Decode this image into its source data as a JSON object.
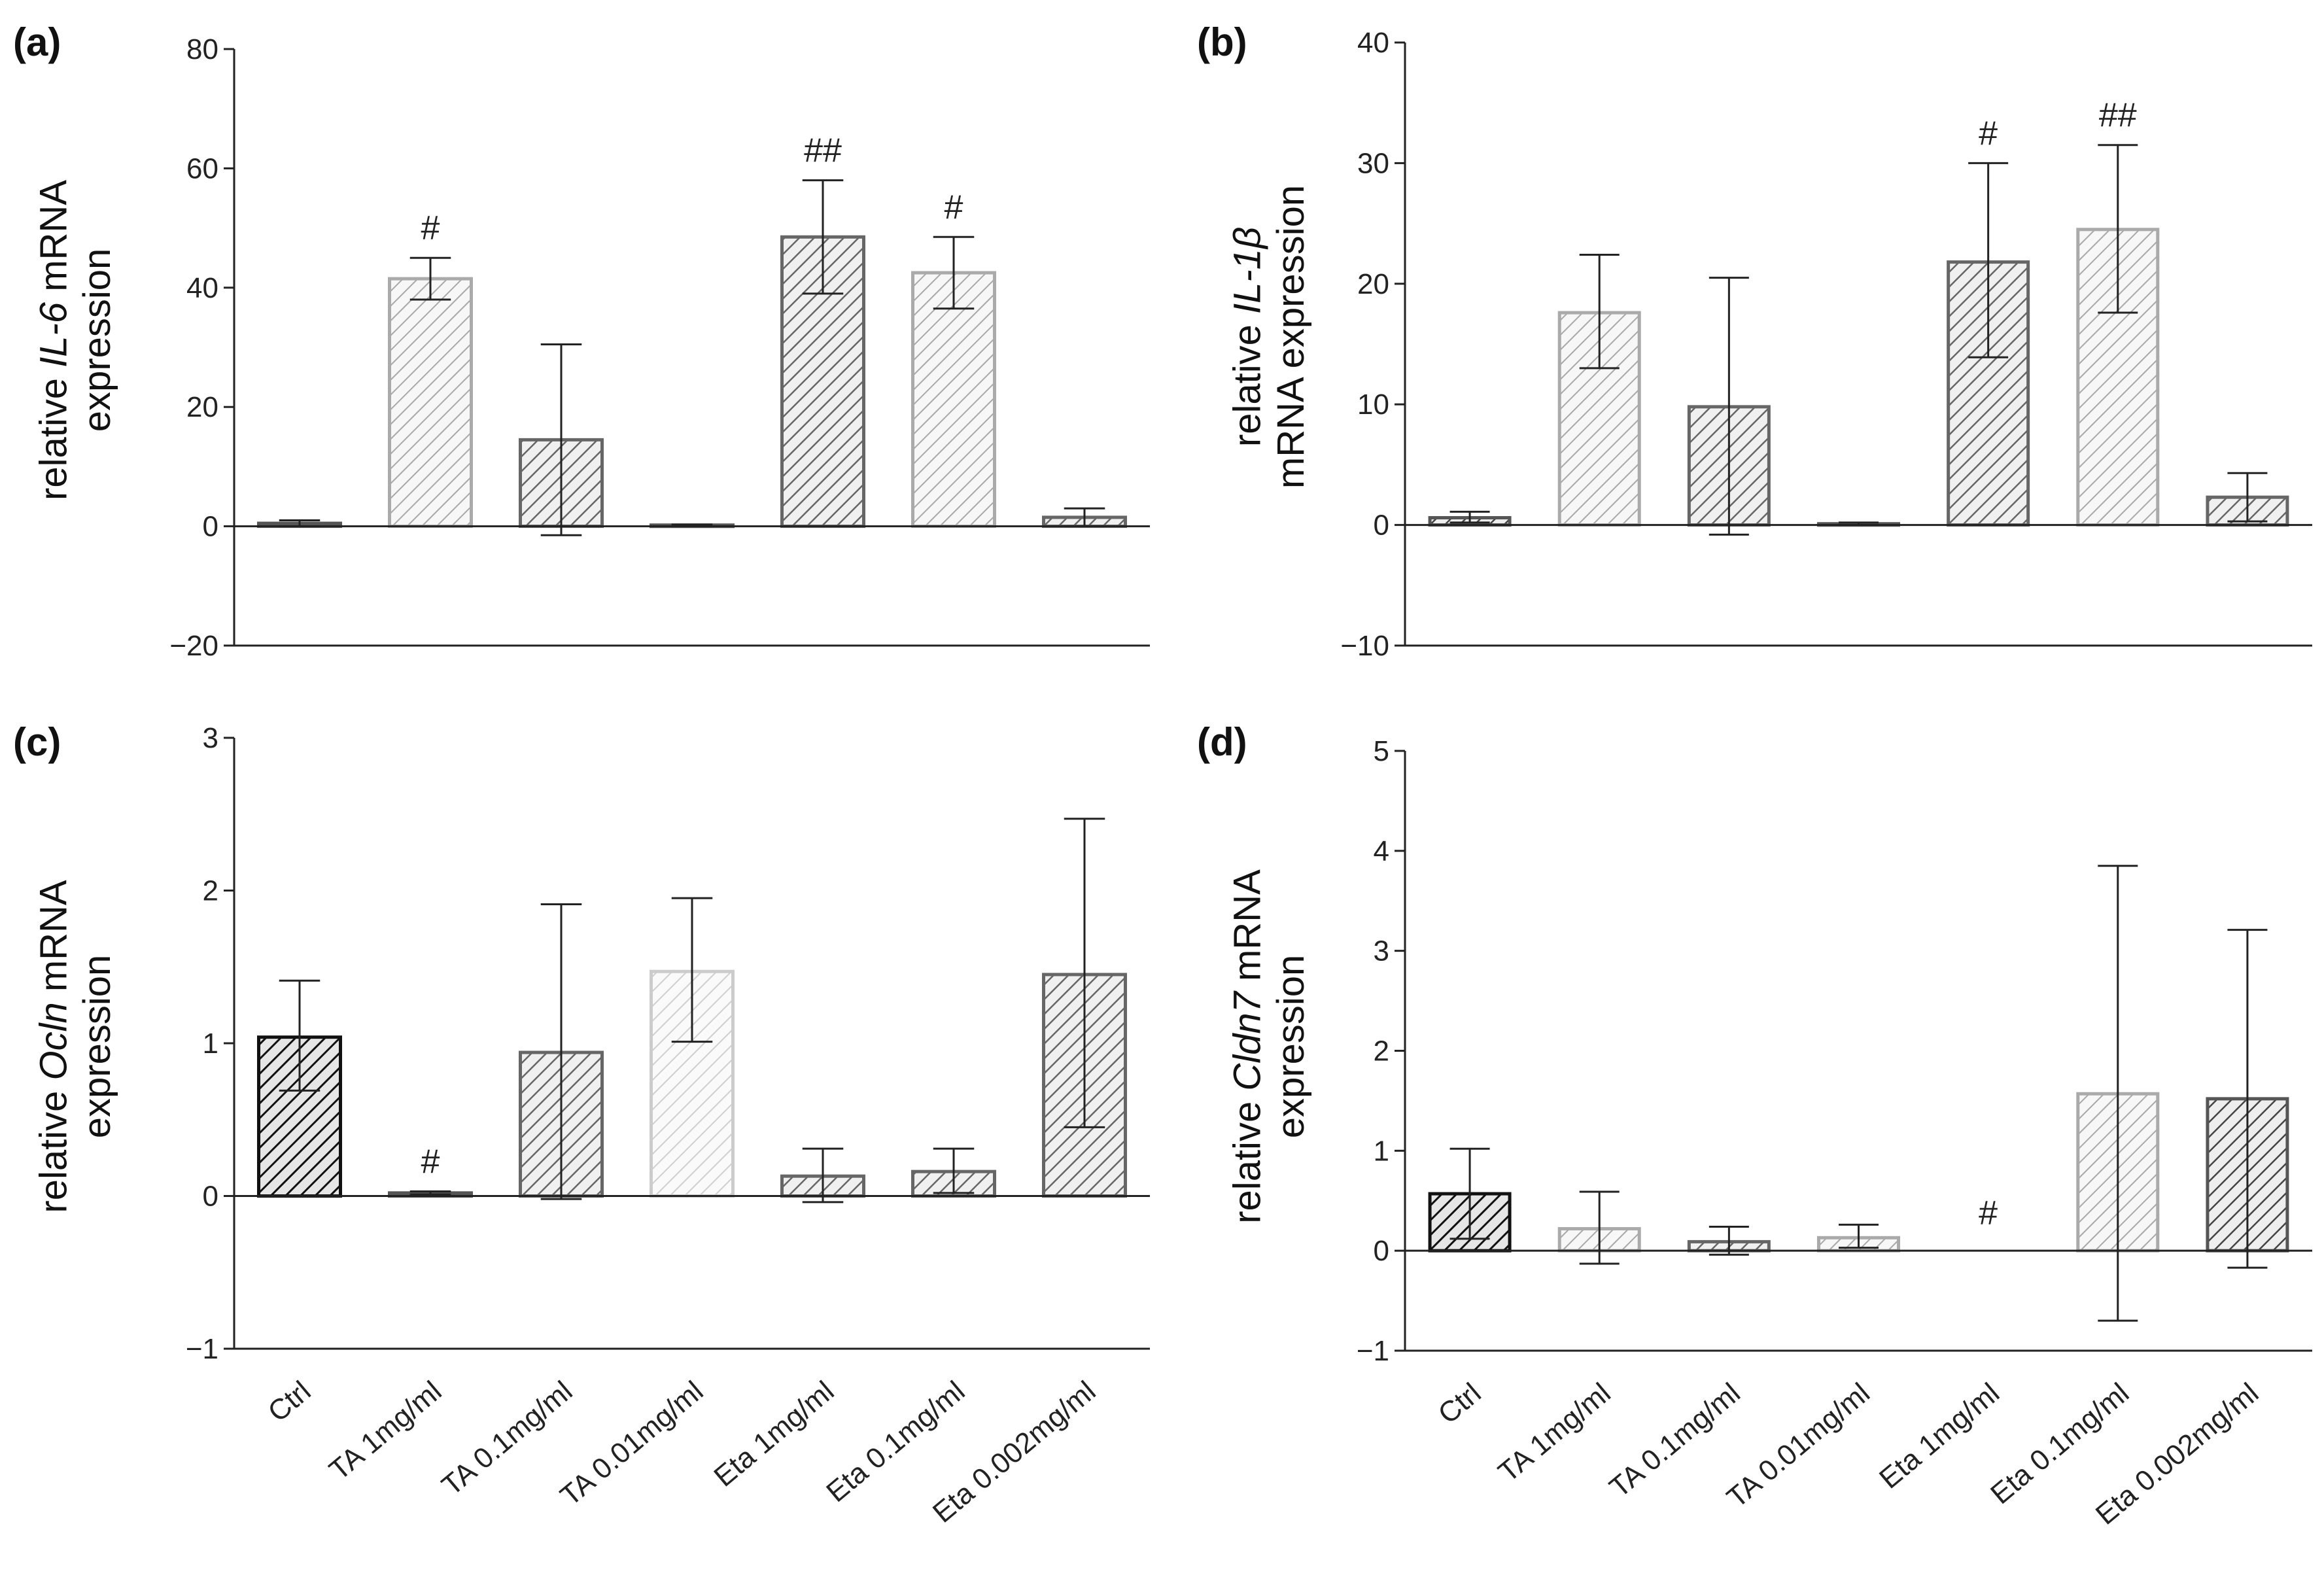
{
  "chart_data": [
    {
      "panel": "(a)",
      "type": "bar",
      "ylabel_parts": [
        {
          "line": [
            "relative ",
            {
              "i": "IL-6"
            },
            " mRNA"
          ]
        },
        {
          "line": [
            "expression"
          ]
        }
      ],
      "ylim": [
        -20,
        80
      ],
      "yticks": [
        -20,
        0,
        20,
        40,
        60,
        80
      ],
      "ytick_labels": [
        "−20",
        "0",
        "20",
        "40",
        "60",
        "80"
      ],
      "categories": [
        "Ctrl",
        "TA 1mg/ml",
        "TA 0.1mg/ml",
        "TA 0.01mg/ml",
        "Eta 1mg/ml",
        "Eta 0.1mg/ml",
        "Eta 0.002mg/ml"
      ],
      "show_xlabels": false,
      "values": [
        0.5,
        41.5,
        14.5,
        0.2,
        48.5,
        42.5,
        1.5
      ],
      "err_low": [
        0,
        38,
        -1.5,
        0,
        39,
        36.5,
        0
      ],
      "err_high": [
        1,
        45,
        30.5,
        0.3,
        58,
        48.5,
        3
      ],
      "shade": [
        "dark",
        "light",
        "mid",
        "dark",
        "mid",
        "light",
        "mid"
      ],
      "annotations": [
        "",
        "#",
        "",
        "",
        "##",
        "#",
        ""
      ]
    },
    {
      "panel": "(b)",
      "type": "bar",
      "ylabel_parts": [
        {
          "line": [
            "relative ",
            {
              "i": "IL-1β"
            }
          ]
        },
        {
          "line": [
            "mRNA expression"
          ]
        }
      ],
      "ylim": [
        -10,
        40
      ],
      "yticks": [
        -10,
        0,
        10,
        20,
        30,
        40
      ],
      "ytick_labels": [
        "−10",
        "0",
        "10",
        "20",
        "30",
        "40"
      ],
      "categories": [
        "Ctrl",
        "TA 1mg/ml",
        "TA 0.1mg/ml",
        "TA 0.01mg/ml",
        "Eta 1mg/ml",
        "Eta 0.1mg/ml",
        "Eta 0.002mg/ml"
      ],
      "show_xlabels": false,
      "values": [
        0.6,
        17.6,
        9.8,
        0.1,
        21.8,
        24.5,
        2.3
      ],
      "err_low": [
        0.2,
        13,
        -0.8,
        0,
        13.9,
        17.6,
        0.3
      ],
      "err_high": [
        1.1,
        22.4,
        20.5,
        0.2,
        30,
        31.5,
        4.3
      ],
      "shade": [
        "dark",
        "light",
        "mid",
        "dark",
        "mid",
        "light",
        "mid"
      ],
      "annotations": [
        "",
        "",
        "",
        "",
        "#",
        "##",
        ""
      ]
    },
    {
      "panel": "(c)",
      "type": "bar",
      "ylabel_parts": [
        {
          "line": [
            "relative ",
            {
              "i": "Ocln"
            },
            " mRNA"
          ]
        },
        {
          "line": [
            "expression"
          ]
        }
      ],
      "ylim": [
        -1,
        3
      ],
      "yticks": [
        -1,
        0,
        1,
        2,
        3
      ],
      "ytick_labels": [
        "−1",
        "0",
        "1",
        "2",
        "3"
      ],
      "categories": [
        "Ctrl",
        "TA 1mg/ml",
        "TA 0.1mg/ml",
        "TA 0.01mg/ml",
        "Eta 1mg/ml",
        "Eta 0.1mg/ml",
        "Eta 0.002mg/ml"
      ],
      "show_xlabels": true,
      "values": [
        1.04,
        0.02,
        0.94,
        1.47,
        0.13,
        0.16,
        1.45
      ],
      "err_low": [
        0.69,
        0.01,
        -0.02,
        1.01,
        -0.04,
        0.02,
        0.45
      ],
      "err_high": [
        1.41,
        0.03,
        1.91,
        1.95,
        0.31,
        0.31,
        2.47
      ],
      "shade": [
        "darkest",
        "dark",
        "mid",
        "pale",
        "mid",
        "mid",
        "mid"
      ],
      "annotations": [
        "",
        "#",
        "",
        "",
        "",
        "",
        ""
      ]
    },
    {
      "panel": "(d)",
      "type": "bar",
      "ylabel_parts": [
        {
          "line": [
            "relative ",
            {
              "i": "Cldn7"
            },
            " mRNA"
          ]
        },
        {
          "line": [
            "expression"
          ]
        }
      ],
      "ylim": [
        -1,
        5
      ],
      "yticks": [
        -1,
        0,
        1,
        2,
        3,
        4,
        5
      ],
      "ytick_labels": [
        "−1",
        "0",
        "1",
        "2",
        "3",
        "4",
        "5"
      ],
      "categories": [
        "Ctrl",
        "TA 1mg/ml",
        "TA 0.1mg/ml",
        "TA 0.01mg/ml",
        "Eta 1mg/ml",
        "Eta 0.1mg/ml",
        "Eta 0.002mg/ml"
      ],
      "show_xlabels": true,
      "values": [
        0.57,
        0.22,
        0.09,
        0.13,
        0,
        1.57,
        1.52
      ],
      "err_low": [
        0.12,
        -0.13,
        -0.04,
        0.03,
        0,
        -0.7,
        -0.17
      ],
      "err_high": [
        1.02,
        0.59,
        0.24,
        0.26,
        0,
        3.85,
        3.21
      ],
      "shade": [
        "darkest",
        "light",
        "mid",
        "light",
        "none",
        "light",
        "dark"
      ],
      "annotations": [
        "",
        "",
        "",
        "",
        "#",
        "",
        ""
      ]
    }
  ]
}
